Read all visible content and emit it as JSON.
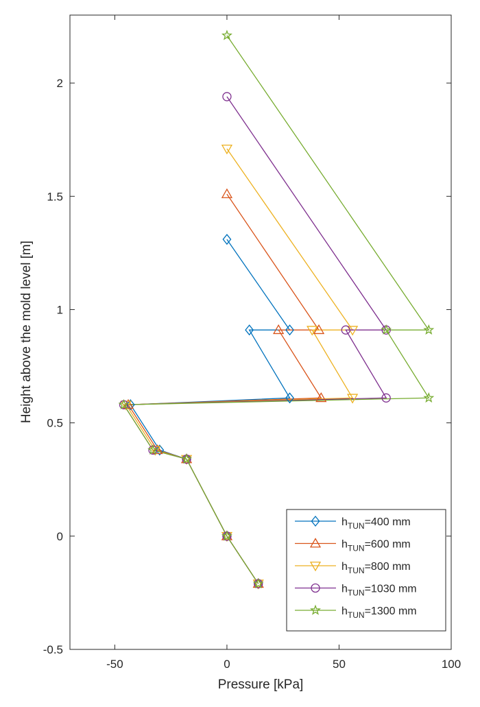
{
  "chart_data": {
    "type": "line",
    "title": "",
    "xlabel": "Pressure [kPa]",
    "ylabel": "Height above the mold level [m]",
    "xlim": [
      -70,
      100
    ],
    "ylim": [
      -0.5,
      2.3
    ],
    "xticks": [
      -50,
      0,
      50,
      100
    ],
    "yticks": [
      -0.5,
      0,
      0.5,
      1,
      1.5,
      2
    ],
    "xtick_labels": [
      "-50",
      "0",
      "50",
      "100"
    ],
    "ytick_labels": [
      "-0.5",
      "0",
      "0.5",
      "1",
      "1.5",
      "2"
    ],
    "grid": false,
    "legend_position": "bottom-right",
    "series": [
      {
        "name": "h_TUN=400 mm",
        "label_base": "h",
        "label_sub": "TUN",
        "label_rest": "=400 mm",
        "color": "#0072BD",
        "marker": "diamond",
        "points": [
          [
            14,
            -0.21
          ],
          [
            0,
            0
          ],
          [
            -18,
            0.34
          ],
          [
            -30,
            0.38
          ],
          [
            -43,
            0.58
          ],
          [
            28,
            0.61
          ],
          [
            10,
            0.91
          ],
          [
            28,
            0.91
          ],
          [
            0,
            1.31
          ]
        ]
      },
      {
        "name": "h_TUN=600 mm",
        "label_base": "h",
        "label_sub": "TUN",
        "label_rest": "=600 mm",
        "color": "#D95319",
        "marker": "triangle-up",
        "points": [
          [
            14,
            -0.21
          ],
          [
            0,
            0
          ],
          [
            -18,
            0.34
          ],
          [
            -31,
            0.38
          ],
          [
            -44,
            0.58
          ],
          [
            42,
            0.61
          ],
          [
            23,
            0.91
          ],
          [
            41,
            0.91
          ],
          [
            0,
            1.51
          ]
        ]
      },
      {
        "name": "h_TUN=800 mm",
        "label_base": "h",
        "label_sub": "TUN",
        "label_rest": "=800 mm",
        "color": "#EDB120",
        "marker": "triangle-down",
        "points": [
          [
            14,
            -0.21
          ],
          [
            0,
            0
          ],
          [
            -18,
            0.34
          ],
          [
            -32,
            0.38
          ],
          [
            -45,
            0.58
          ],
          [
            56,
            0.61
          ],
          [
            38,
            0.91
          ],
          [
            56,
            0.91
          ],
          [
            0,
            1.71
          ]
        ]
      },
      {
        "name": "h_TUN=1030 mm",
        "label_base": "h",
        "label_sub": "TUN",
        "label_rest": "=1030 mm",
        "color": "#7E2F8E",
        "marker": "circle",
        "points": [
          [
            14,
            -0.21
          ],
          [
            0,
            0
          ],
          [
            -18,
            0.34
          ],
          [
            -33,
            0.38
          ],
          [
            -46,
            0.58
          ],
          [
            71,
            0.61
          ],
          [
            53,
            0.91
          ],
          [
            71,
            0.91
          ],
          [
            0,
            1.94
          ]
        ]
      },
      {
        "name": "h_TUN=1300 mm",
        "label_base": "h",
        "label_sub": "TUN",
        "label_rest": "=1300 mm",
        "color": "#77AC30",
        "marker": "star",
        "points": [
          [
            14,
            -0.21
          ],
          [
            0,
            0
          ],
          [
            -18,
            0.34
          ],
          [
            -33,
            0.38
          ],
          [
            -46,
            0.58
          ],
          [
            90,
            0.61
          ],
          [
            71,
            0.91
          ],
          [
            90,
            0.91
          ],
          [
            0,
            2.21
          ]
        ]
      }
    ]
  }
}
